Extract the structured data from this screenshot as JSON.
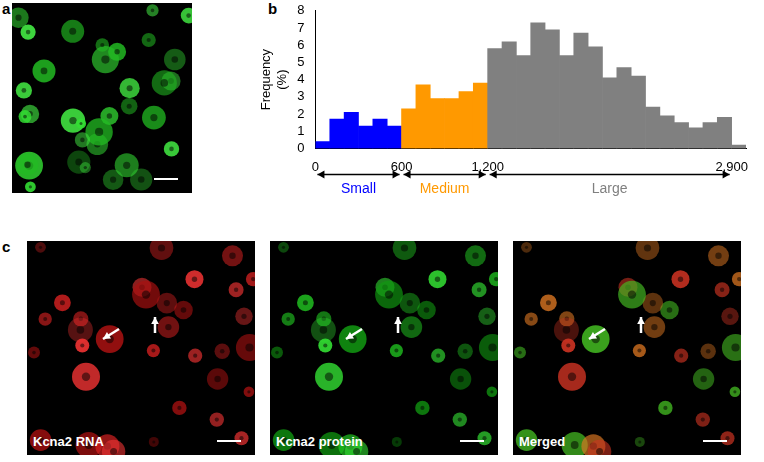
{
  "figure": {
    "panels": [
      {
        "label": "a",
        "type": "image"
      },
      {
        "label": "b",
        "type": "chart"
      },
      {
        "label": "c",
        "type": "image_row",
        "images": [
          {
            "caption": "Kcna2 RNA"
          },
          {
            "caption": "Kcna2 protein"
          },
          {
            "caption": "Merged"
          }
        ]
      }
    ]
  },
  "chart_data": {
    "type": "histogram",
    "y_label": "Frequency (%)",
    "bins": [
      0,
      100,
      200,
      300,
      400,
      500,
      600,
      700,
      800,
      900,
      1000,
      1100,
      1200,
      1300,
      1400,
      1500,
      1600,
      1700,
      1800,
      1900,
      2000,
      2100,
      2200,
      2300,
      2400,
      2500,
      2600,
      2700,
      2800,
      2900,
      3000
    ],
    "values": [
      0.4,
      1.7,
      2.1,
      1.3,
      1.7,
      1.3,
      2.3,
      3.7,
      2.9,
      2.9,
      3.3,
      3.8,
      5.8,
      6.2,
      5.4,
      7.3,
      6.9,
      5.4,
      6.7,
      5.9,
      4.1,
      4.7,
      4.2,
      2.4,
      1.9,
      1.5,
      1.2,
      1.5,
      1.8,
      0.2
    ],
    "colors": [
      "#0000ff",
      "#0000ff",
      "#0000ff",
      "#0000ff",
      "#0000ff",
      "#0000ff",
      "#ff9900",
      "#ff9900",
      "#ff9900",
      "#ff9900",
      "#ff9900",
      "#ff9900",
      "#808080",
      "#808080",
      "#808080",
      "#808080",
      "#808080",
      "#808080",
      "#808080",
      "#808080",
      "#808080",
      "#808080",
      "#808080",
      "#808080",
      "#808080",
      "#808080",
      "#808080",
      "#808080",
      "#808080",
      "#808080"
    ],
    "xlim": [
      0,
      3000
    ],
    "xticks": [
      0,
      600,
      {
        "value": 1200,
        "label": "1,200"
      },
      {
        "value": 2900,
        "label": "2,900"
      }
    ],
    "ylim": [
      0,
      8
    ],
    "yticks": [
      0,
      1,
      2,
      3,
      4,
      5,
      6,
      7,
      8
    ],
    "grid": false,
    "annotations": [
      {
        "text": "Small",
        "from": 0,
        "to": 600,
        "color": "#0000ff"
      },
      {
        "text": "Medium",
        "from": 600,
        "to": 1200,
        "color": "#ff9900"
      },
      {
        "text": "Large",
        "from": 1200,
        "to": 2900,
        "color": "#808080"
      }
    ]
  }
}
